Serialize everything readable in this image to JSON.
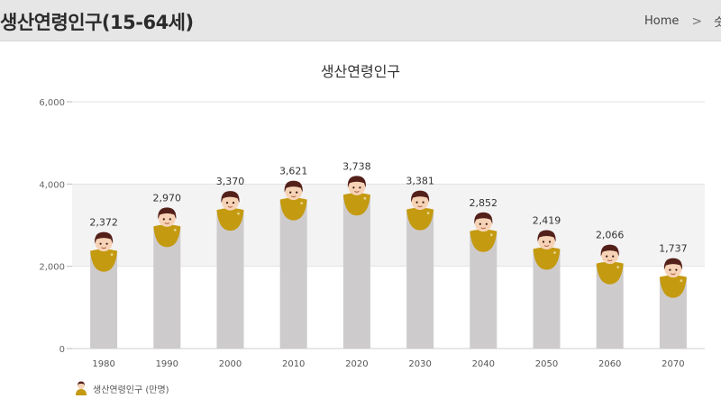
{
  "header": {
    "page_title": "생산연령인구(15-64세)",
    "breadcrumb_home": "Home",
    "breadcrumb_current": "숫자"
  },
  "chart_data": {
    "type": "bar",
    "title": "생산연령인구",
    "categories": [
      "1980",
      "1990",
      "2000",
      "2010",
      "2020",
      "2030",
      "2040",
      "2050",
      "2060",
      "2070"
    ],
    "series": [
      {
        "name": "생산연령인구 (만명)",
        "values": [
          2372,
          2970,
          3370,
          3621,
          3738,
          3381,
          2852,
          2419,
          2066,
          1737
        ],
        "value_labels": [
          "2,372",
          "2,970",
          "3,370",
          "3,621",
          "3,738",
          "3,381",
          "2,852",
          "2,419",
          "2,066",
          "1,737"
        ]
      }
    ],
    "yticks": [
      0,
      2000,
      4000,
      6000
    ],
    "ytick_labels": [
      "0",
      "2,000",
      "4,000",
      "6,000"
    ],
    "ylim": [
      0,
      6000
    ],
    "xlabel": "",
    "ylabel": "",
    "grid": true,
    "legend_position": "bottom-left",
    "colors": {
      "bar": "#cdcbcc",
      "body": "#c49a10",
      "face": "#f6d3b6",
      "hair": "#54201a",
      "band": "#f3f3f3"
    }
  }
}
